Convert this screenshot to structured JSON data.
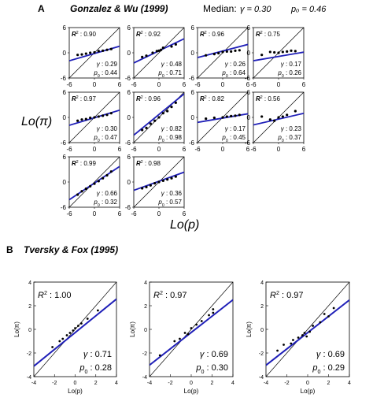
{
  "panelA": {
    "letter": "A",
    "title": "Gonzalez & Wu (1999)",
    "median_label": "Median:",
    "median_gamma": "γ = 0.30",
    "median_p0": "pₒ = 0.46",
    "ylabel": "Lo(π)",
    "xlabel": "Lo(p)"
  },
  "panelB": {
    "letter": "B",
    "title": "Tversky & Fox (1995)",
    "ylabel": "Lo(π)",
    "xlabel": "Lo(p)"
  },
  "chart_data": [
    {
      "panel": "A",
      "type": "scatter",
      "title": "Gonzalez & Wu (1999)",
      "xlabel": "Lo(p)",
      "ylabel": "Lo(π)",
      "xlim": [
        -6,
        6
      ],
      "ylim": [
        -6,
        6
      ],
      "xticks": [
        "-6",
        "0",
        "6"
      ],
      "yticks": [
        "6",
        "0",
        "-6"
      ],
      "reference_line": "identity",
      "colors": {
        "fit": "#1f1fb8",
        "points": "#000000",
        "diagonal": "#000000"
      },
      "subjects": [
        {
          "r2": "0.90",
          "gamma": "0.29",
          "p0": "0.44",
          "points": [
            [
              -4,
              -0.5
            ],
            [
              -3,
              -0.4
            ],
            [
              -2,
              -0.2
            ],
            [
              -1,
              0
            ],
            [
              0,
              0.1
            ],
            [
              1,
              0.4
            ],
            [
              2,
              0.5
            ],
            [
              3,
              0.7
            ],
            [
              4,
              0.9
            ]
          ]
        },
        {
          "r2": "0.92",
          "gamma": "0.48",
          "p0": "0.71",
          "points": [
            [
              -4,
              -1
            ],
            [
              -3,
              -0.7
            ],
            [
              -1.5,
              0
            ],
            [
              -0.5,
              0.4
            ],
            [
              0,
              0.5
            ],
            [
              0.5,
              0.7
            ],
            [
              1,
              1.2
            ],
            [
              3,
              1.5
            ],
            [
              4,
              2
            ]
          ]
        },
        {
          "r2": "0.96",
          "gamma": "0.26",
          "p0": "0.64",
          "points": [
            [
              -4,
              -0.6
            ],
            [
              -2,
              -0.3
            ],
            [
              -1,
              -0.1
            ],
            [
              0,
              0.2
            ],
            [
              1,
              0.3
            ],
            [
              2,
              0.3
            ],
            [
              3,
              0.5
            ],
            [
              4,
              0.6
            ]
          ]
        },
        {
          "r2": "0.75",
          "gamma": "0.17",
          "p0": "0.26",
          "points": [
            [
              -4,
              -0.5
            ],
            [
              -2,
              0.2
            ],
            [
              -1,
              0.1
            ],
            [
              0,
              0
            ],
            [
              1,
              0.2
            ],
            [
              2,
              0.3
            ],
            [
              3,
              0.5
            ],
            [
              4,
              0.4
            ]
          ]
        },
        {
          "r2": "0.97",
          "gamma": "0.30",
          "p0": "0.47",
          "points": [
            [
              -4,
              -0.8
            ],
            [
              -3,
              -0.5
            ],
            [
              -2,
              -0.4
            ],
            [
              -1,
              -0.1
            ],
            [
              0,
              0
            ],
            [
              1,
              0.2
            ],
            [
              2,
              0.4
            ],
            [
              3,
              0.6
            ],
            [
              4,
              1
            ]
          ]
        },
        {
          "r2": "0.96",
          "gamma": "0.82",
          "p0": "0.98",
          "points": [
            [
              -4,
              -3
            ],
            [
              -3,
              -2.5
            ],
            [
              -2,
              -1.5
            ],
            [
              -1,
              -0.8
            ],
            [
              0,
              0
            ],
            [
              1,
              1
            ],
            [
              2,
              1.5
            ],
            [
              3,
              2.5
            ],
            [
              4,
              3.5
            ]
          ]
        },
        {
          "r2": "0.82",
          "gamma": "0.17",
          "p0": "0.45",
          "points": [
            [
              -4,
              -0.3
            ],
            [
              -2,
              -0.1
            ],
            [
              0,
              0
            ],
            [
              1,
              0.2
            ],
            [
              2,
              0.3
            ],
            [
              3,
              0.4
            ],
            [
              4,
              0.6
            ]
          ]
        },
        {
          "r2": "0.56",
          "gamma": "0.23",
          "p0": "0.37",
          "points": [
            [
              -4,
              0.2
            ],
            [
              -2,
              -0.5
            ],
            [
              -1,
              -0.8
            ],
            [
              0,
              0
            ],
            [
              1,
              0.2
            ],
            [
              2,
              0.6
            ],
            [
              4,
              1.5
            ]
          ]
        },
        {
          "r2": "0.99",
          "gamma": "0.66",
          "p0": "0.32",
          "points": [
            [
              -4,
              -3
            ],
            [
              -3,
              -2.2
            ],
            [
              -2,
              -1.6
            ],
            [
              -1,
              -1
            ],
            [
              0,
              -0.4
            ],
            [
              1,
              0.2
            ],
            [
              2,
              0.9
            ],
            [
              3,
              1.6
            ],
            [
              4,
              2.5
            ]
          ]
        },
        {
          "r2": "0.98",
          "gamma": "0.36",
          "p0": "0.57",
          "points": [
            [
              -4,
              -1.5
            ],
            [
              -3,
              -1.2
            ],
            [
              -2,
              -0.8
            ],
            [
              -1,
              -0.3
            ],
            [
              0,
              0
            ],
            [
              1,
              0.3
            ],
            [
              2,
              0.6
            ],
            [
              3,
              0.9
            ],
            [
              4,
              1.3
            ]
          ]
        }
      ]
    },
    {
      "panel": "B",
      "type": "scatter",
      "title": "Tversky & Fox (1995)",
      "xlabel": "Lo(p)",
      "ylabel": "Lo(π)",
      "xlim": [
        -4,
        4
      ],
      "ylim": [
        -4,
        4
      ],
      "xticks": [
        "-4",
        "-2",
        "0",
        "2",
        "4"
      ],
      "yticks": [
        "4",
        "2",
        "0",
        "-2",
        "-4"
      ],
      "reference_line": "identity",
      "colors": {
        "fit": "#1f1fb8",
        "points": "#000000",
        "diagonal": "#000000"
      },
      "subjects": [
        {
          "r2": "1.00",
          "gamma": "0.71",
          "p0": "0.28",
          "points": [
            [
              -2.2,
              -1.5
            ],
            [
              -1.5,
              -1.0
            ],
            [
              -1.2,
              -0.8
            ],
            [
              -0.8,
              -0.5
            ],
            [
              -0.5,
              -0.3
            ],
            [
              -0.2,
              -0.1
            ],
            [
              0,
              0.1
            ],
            [
              0.3,
              0.3
            ],
            [
              0.6,
              0.5
            ],
            [
              1.2,
              0.9
            ],
            [
              2.2,
              1.6
            ]
          ]
        },
        {
          "r2": "0.97",
          "gamma": "0.69",
          "p0": "0.30",
          "points": [
            [
              -3,
              -2.2
            ],
            [
              -1.6,
              -1.0
            ],
            [
              -1.1,
              -0.8
            ],
            [
              -0.6,
              -0.3
            ],
            [
              -0.3,
              -0.4
            ],
            [
              0,
              0.1
            ],
            [
              0.5,
              0.4
            ],
            [
              1,
              0.7
            ],
            [
              1.7,
              1.2
            ],
            [
              2.1,
              1.7
            ],
            [
              2.1,
              1.4
            ]
          ]
        },
        {
          "r2": "0.97",
          "gamma": "0.69",
          "p0": "0.29",
          "points": [
            [
              -2.9,
              -1.8
            ],
            [
              -2.3,
              -1.3
            ],
            [
              -1.6,
              -1.2
            ],
            [
              -1.4,
              -0.9
            ],
            [
              -0.9,
              -0.7
            ],
            [
              -0.5,
              -0.5
            ],
            [
              -0.3,
              -0.3
            ],
            [
              -0.1,
              -0.6
            ],
            [
              0.2,
              -0.2
            ],
            [
              0.5,
              0.3
            ],
            [
              1.2,
              0.6
            ],
            [
              1.6,
              1.3
            ],
            [
              2.0,
              1.1
            ],
            [
              2.5,
              1.8
            ]
          ]
        }
      ]
    }
  ]
}
